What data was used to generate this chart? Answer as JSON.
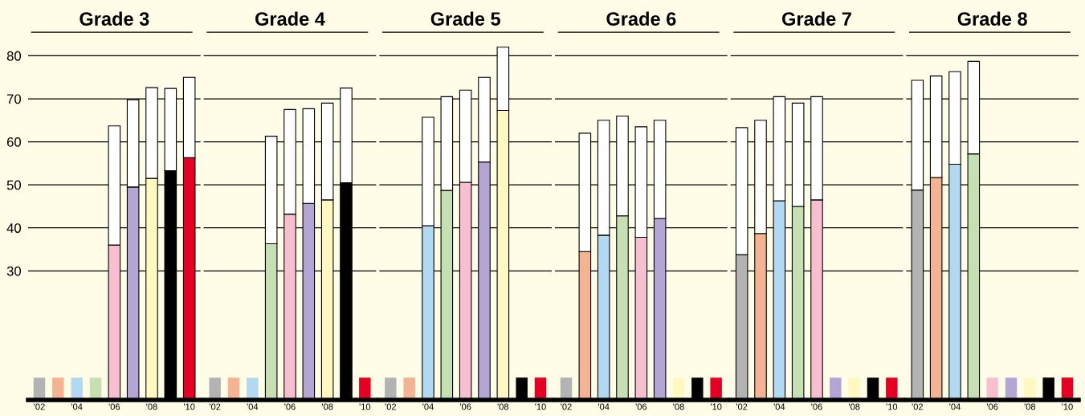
{
  "chart_data": [
    {
      "type": "bar",
      "title": "Grade 3",
      "stacked": true,
      "ylim": [
        0,
        85.5
      ],
      "yticks": [
        30,
        40,
        50,
        60,
        70,
        80
      ],
      "grid": "y",
      "categories": [
        "'02",
        null,
        "'04",
        null,
        "'06",
        null,
        "'08",
        null,
        "'10"
      ],
      "series": [
        {
          "values": [
            null,
            null,
            null,
            null,
            36,
            49.5,
            51.5,
            53.3,
            56.3
          ],
          "colors": [
            "#b3b3b3",
            "#f4b393",
            "#b3d9f2",
            "#c6e0b4",
            "#f7bfd0",
            "#b3a6d4",
            "#fff8c0",
            "#000000",
            "#e30022"
          ]
        },
        {
          "values": [
            null,
            null,
            null,
            null,
            27.7,
            20.3,
            21.1,
            19.1,
            18.7
          ],
          "color": "#ffffff"
        },
        {
          "values": [
            5.2,
            5.2,
            5.2,
            5.2,
            null,
            null,
            null,
            null,
            null
          ],
          "colors": [
            "#b3b3b3",
            "#f4b393",
            "#b3d9f2",
            "#c6e0b4",
            "#f7bfd0",
            "#b3a6d4",
            "#fff8c0",
            "#000000",
            "#e30022"
          ]
        }
      ]
    },
    {
      "type": "bar",
      "title": "Grade 4",
      "stacked": true,
      "ylim": [
        0,
        85.5
      ],
      "yticks": [
        30,
        40,
        50,
        60,
        70,
        80
      ],
      "grid": "y",
      "tick_labels": "x",
      "categories": [
        "'02",
        null,
        "'04",
        null,
        "'06",
        null,
        "'08",
        null,
        "'10"
      ],
      "series": [
        {
          "values": [
            null,
            null,
            null,
            36.3,
            43.2,
            45.7,
            46.5,
            50.5,
            null
          ],
          "colors": [
            "#b3b3b3",
            "#f4b393",
            "#b3d9f2",
            "#c6e0b4",
            "#f7bfd0",
            "#b3a6d4",
            "#fff8c0",
            "#000000",
            "#e30022"
          ]
        },
        {
          "values": [
            null,
            null,
            null,
            25.0,
            24.3,
            22.0,
            22.5,
            22.0,
            null
          ],
          "color": "#ffffff"
        },
        {
          "values": [
            5.2,
            5.2,
            5.2,
            null,
            null,
            null,
            null,
            null,
            5.2
          ],
          "colors": [
            "#b3b3b3",
            "#f4b393",
            "#b3d9f2",
            "#c6e0b4",
            "#f7bfd0",
            "#b3a6d4",
            "#fff8c0",
            "#000000",
            "#e30022"
          ]
        }
      ]
    },
    {
      "type": "bar",
      "title": "Grade 5",
      "stacked": true,
      "ylim": [
        0,
        85.5
      ],
      "yticks": [
        30,
        40,
        50,
        60,
        70,
        80
      ],
      "grid": "y",
      "tick_labels": "x",
      "categories": [
        "'02",
        null,
        "'04",
        null,
        "'06",
        null,
        "'08",
        null,
        "'10"
      ],
      "series": [
        {
          "values": [
            null,
            null,
            40.5,
            48.7,
            50.6,
            55.3,
            67.3,
            null,
            null
          ],
          "colors": [
            "#b3b3b3",
            "#f4b393",
            "#b3d9f2",
            "#c6e0b4",
            "#f7bfd0",
            "#b3a6d4",
            "#fff8c0",
            "#000000",
            "#e30022"
          ]
        },
        {
          "values": [
            null,
            null,
            25.2,
            21.8,
            21.4,
            19.7,
            14.7,
            null,
            null
          ],
          "color": "#ffffff"
        },
        {
          "values": [
            5.2,
            5.2,
            null,
            null,
            null,
            null,
            null,
            5.2,
            5.2
          ],
          "colors": [
            "#b3b3b3",
            "#f4b393",
            "#b3d9f2",
            "#c6e0b4",
            "#f7bfd0",
            "#b3a6d4",
            "#fff8c0",
            "#000000",
            "#e30022"
          ]
        }
      ]
    },
    {
      "type": "bar",
      "title": "Grade 6",
      "stacked": true,
      "ylim": [
        0,
        85.5
      ],
      "yticks": [
        30,
        40,
        50,
        60,
        70,
        80
      ],
      "grid": "y",
      "tick_labels": "x",
      "categories": [
        "'02",
        null,
        "'04",
        null,
        "'06",
        null,
        "'08",
        null,
        "'10"
      ],
      "series": [
        {
          "values": [
            null,
            34.5,
            38.3,
            42.8,
            37.8,
            42.2,
            null,
            null,
            null
          ],
          "colors": [
            "#b3b3b3",
            "#f4b393",
            "#b3d9f2",
            "#c6e0b4",
            "#f7bfd0",
            "#b3a6d4",
            "#fff8c0",
            "#000000",
            "#e30022"
          ]
        },
        {
          "values": [
            null,
            27.5,
            26.7,
            23.2,
            25.7,
            22.8,
            null,
            null,
            null
          ],
          "color": "#ffffff"
        },
        {
          "values": [
            5.2,
            null,
            null,
            null,
            null,
            null,
            5.2,
            5.2,
            5.2
          ],
          "colors": [
            "#b3b3b3",
            "#f4b393",
            "#b3d9f2",
            "#c6e0b4",
            "#f7bfd0",
            "#b3a6d4",
            "#fff8c0",
            "#000000",
            "#e30022"
          ]
        }
      ]
    },
    {
      "type": "bar",
      "title": "Grade 7",
      "stacked": true,
      "ylim": [
        0,
        85.5
      ],
      "yticks": [
        30,
        40,
        50,
        60,
        70,
        80
      ],
      "grid": "y",
      "tick_labels": "x",
      "categories": [
        "'02",
        null,
        "'04",
        null,
        "'06",
        null,
        "'08",
        null,
        "'10"
      ],
      "series": [
        {
          "values": [
            33.8,
            38.7,
            46.3,
            45.0,
            46.5,
            null,
            null,
            null,
            null
          ],
          "colors": [
            "#b3b3b3",
            "#f4b393",
            "#b3d9f2",
            "#c6e0b4",
            "#f7bfd0",
            "#b3a6d4",
            "#fff8c0",
            "#000000",
            "#e30022"
          ]
        },
        {
          "values": [
            29.5,
            26.3,
            24.2,
            24.0,
            24.0,
            null,
            null,
            null,
            null
          ],
          "color": "#ffffff"
        },
        {
          "values": [
            null,
            null,
            null,
            null,
            null,
            5.2,
            5.2,
            5.2,
            5.2
          ],
          "colors": [
            "#b3b3b3",
            "#f4b393",
            "#b3d9f2",
            "#c6e0b4",
            "#f7bfd0",
            "#b3a6d4",
            "#fff8c0",
            "#000000",
            "#e30022"
          ]
        }
      ]
    },
    {
      "type": "bar",
      "title": "Grade 8",
      "stacked": true,
      "ylim": [
        0,
        85.5
      ],
      "yticks": [
        30,
        40,
        50,
        60,
        70,
        80
      ],
      "grid": "y",
      "tick_labels": "x",
      "categories": [
        "'02",
        null,
        "'04",
        null,
        "'06",
        null,
        "'08",
        null,
        "'10"
      ],
      "series": [
        {
          "values": [
            48.8,
            51.7,
            54.8,
            57.2,
            null,
            null,
            null,
            null,
            null
          ],
          "colors": [
            "#b3b3b3",
            "#f4b393",
            "#b3d9f2",
            "#c6e0b4",
            "#f7bfd0",
            "#b3a6d4",
            "#fff8c0",
            "#000000",
            "#e30022"
          ]
        },
        {
          "values": [
            25.5,
            23.6,
            21.5,
            21.5,
            null,
            null,
            null,
            null,
            null
          ],
          "color": "#ffffff"
        },
        {
          "values": [
            null,
            null,
            null,
            null,
            5.2,
            5.2,
            5.2,
            5.2,
            5.2
          ],
          "colors": [
            "#b3b3b3",
            "#f4b393",
            "#b3d9f2",
            "#c6e0b4",
            "#f7bfd0",
            "#b3a6d4",
            "#fff8c0",
            "#000000",
            "#e30022"
          ]
        }
      ]
    }
  ]
}
